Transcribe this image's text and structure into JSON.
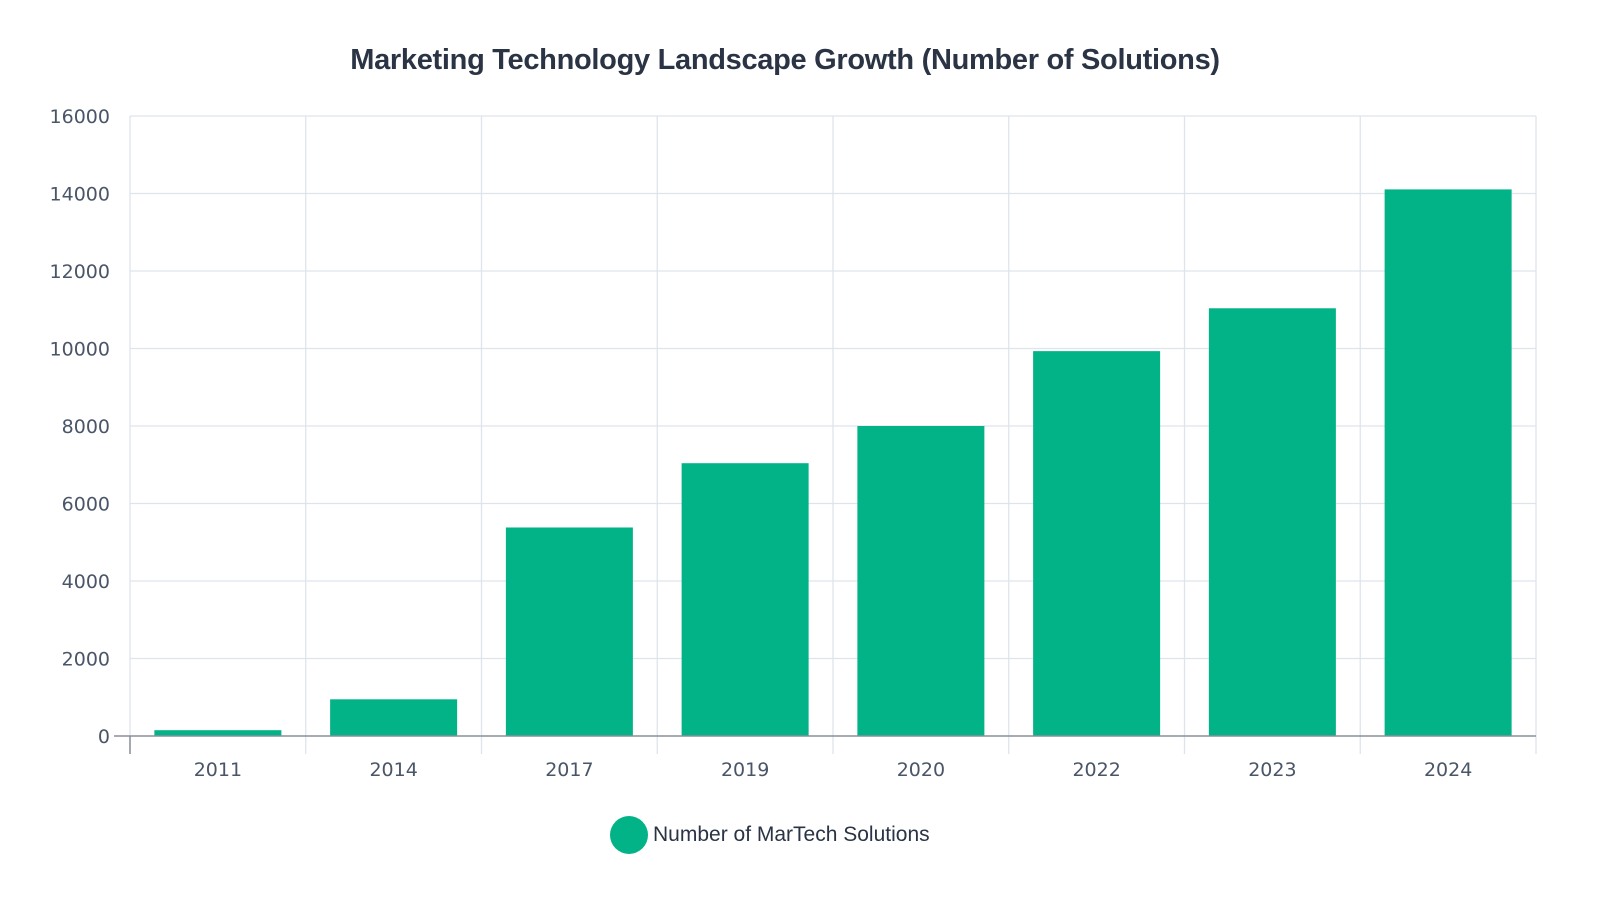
{
  "chart_data": {
    "type": "bar",
    "title": "Marketing Technology Landscape Growth (Number of Solutions)",
    "xlabel": "",
    "ylabel": "",
    "categories": [
      "2011",
      "2014",
      "2017",
      "2019",
      "2020",
      "2022",
      "2023",
      "2024"
    ],
    "series": [
      {
        "name": "Number of MarTech Solutions",
        "values": [
          150,
          947,
          5381,
          7040,
          8000,
          9932,
          11038,
          14106
        ],
        "color": "#02b388"
      }
    ],
    "ylim": [
      0,
      16000
    ],
    "yticks": [
      "0",
      "2000",
      "4000",
      "6000",
      "8000",
      "10000",
      "12000",
      "14000",
      "16000"
    ],
    "grid": true,
    "legend_position": "bottom-center"
  }
}
